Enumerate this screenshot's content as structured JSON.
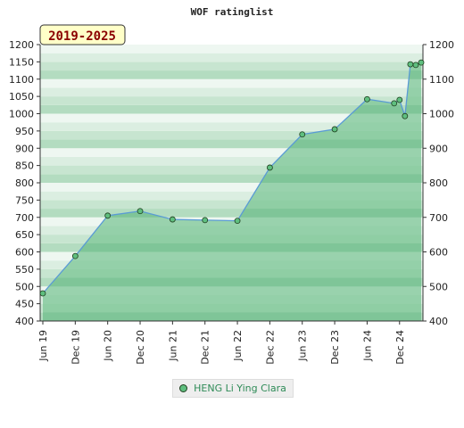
{
  "chart_data": {
    "type": "area",
    "title": "WOF ratinglist",
    "range_badge": "2019-2025",
    "ylim": [
      400,
      1200
    ],
    "y_ticks": [
      400,
      450,
      500,
      550,
      600,
      650,
      700,
      750,
      800,
      850,
      900,
      950,
      1000,
      1050,
      1100,
      1150,
      1200
    ],
    "y_ticks_right": [
      400,
      500,
      600,
      700,
      800,
      900,
      1000,
      1100,
      1200
    ],
    "x_ticks": [
      "Jun 19",
      "Dec 19",
      "Jun 20",
      "Dec 20",
      "Jun 21",
      "Dec 21",
      "Jun 22",
      "Dec 22",
      "Jun 23",
      "Dec 23",
      "Jun 24",
      "Dec 24"
    ],
    "grid": true,
    "legend_position": "bottom",
    "colors": {
      "fill": "#7cc595",
      "line": "#5a9bd5",
      "marker": "#5fbf7f"
    },
    "series": [
      {
        "name": "HENG Li Ying Clara",
        "x": [
          "Jun 19",
          "Dec 19",
          "Jun 20",
          "Dec 20",
          "Jun 21",
          "Dec 21",
          "Jun 22",
          "Dec 22",
          "Jun 23",
          "Dec 23",
          "Jun 24",
          "Nov 24",
          "Dec 24",
          "Jan 25",
          "Feb 25",
          "Mar 25",
          "Apr 25"
        ],
        "values": [
          480,
          588,
          705,
          718,
          694,
          692,
          690,
          844,
          940,
          955,
          1042,
          1030,
          1040,
          993,
          1143,
          1141,
          1148
        ]
      }
    ]
  }
}
